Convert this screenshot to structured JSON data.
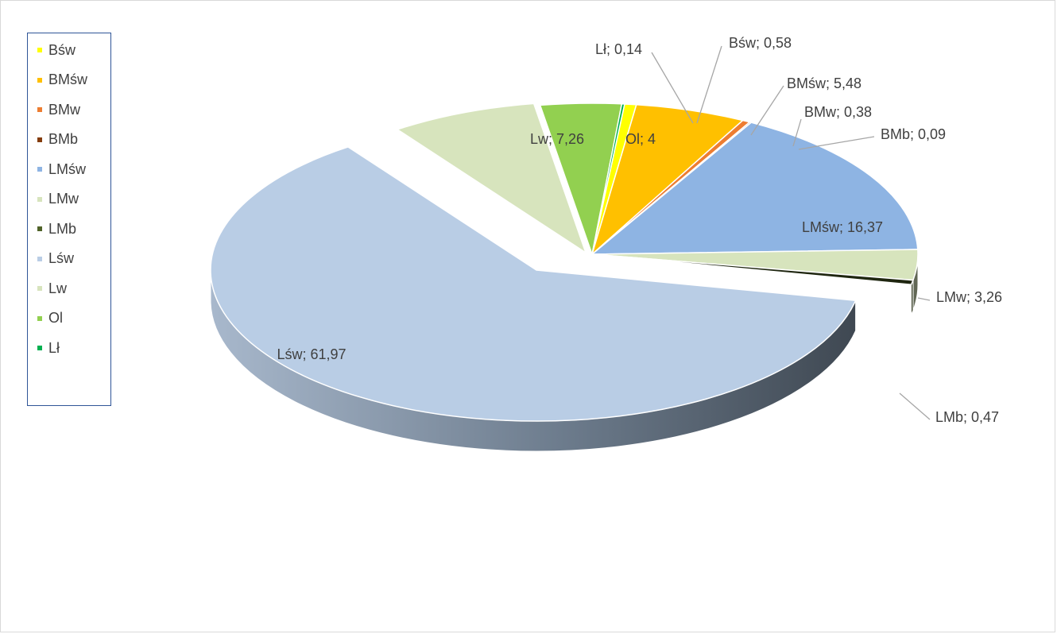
{
  "chart_data": {
    "type": "pie",
    "title": "",
    "legend_position": "left",
    "slices": [
      {
        "name": "Bśw",
        "label": "Bśw; 0,58",
        "value": 0.58,
        "color": "#ffff00"
      },
      {
        "name": "BMśw",
        "label": "BMśw; 5,48",
        "value": 5.48,
        "color": "#ffc000"
      },
      {
        "name": "BMw",
        "label": "BMw; 0,38",
        "value": 0.38,
        "color": "#ed7d31"
      },
      {
        "name": "BMb",
        "label": "BMb; 0,09",
        "value": 0.09,
        "color": "#843c0c"
      },
      {
        "name": "LMśw",
        "label": "LMśw; 16,37",
        "value": 16.37,
        "color": "#8eb4e3"
      },
      {
        "name": "LMw",
        "label": "LMw; 3,26",
        "value": 3.26,
        "color": "#d7e4bd"
      },
      {
        "name": "LMb",
        "label": "LMb; 0,47",
        "value": 0.47,
        "color": "#4f6228"
      },
      {
        "name": "Lśw",
        "label": "Lśw; 61,97",
        "value": 61.97,
        "color": "#b9cde5"
      },
      {
        "name": "Lw",
        "label": "Lw; 7,26",
        "value": 7.26,
        "color": "#d7e4bd"
      },
      {
        "name": "Ol",
        "label": "Ol; 4",
        "value": 4,
        "color": "#92d050"
      },
      {
        "name": "Lł",
        "label": "Lł; 0,14",
        "value": 0.14,
        "color": "#00b050"
      }
    ],
    "legend": [
      "Bśw",
      "BMśw",
      "BMw",
      "BMb",
      "LMśw",
      "LMw",
      "LMb",
      "Lśw",
      "Lw",
      "Ol",
      "Lł"
    ]
  }
}
